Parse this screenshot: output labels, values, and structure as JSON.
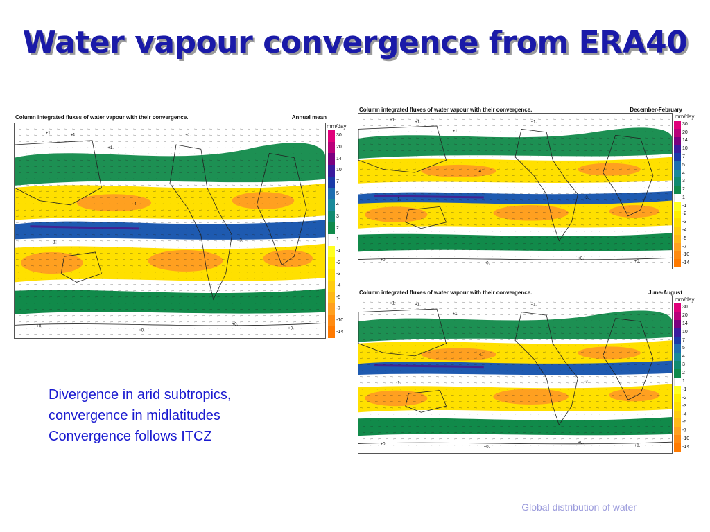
{
  "slide": {
    "title": "Water vapour convergence from ERA40",
    "bullets": [
      "Divergence in arid subtropics,",
      "convergence in midlatitudes",
      "Convergence follows ITCZ"
    ],
    "footer": "Global distribution of water"
  },
  "panels": [
    {
      "heading": "Column integrated fluxes of water vapour with their convergence.",
      "season": "Annual mean",
      "unit": "mm/day"
    },
    {
      "heading": "Column integrated fluxes of water vapour with their convergence.",
      "season": "December-February",
      "unit": "mm/day"
    },
    {
      "heading": "Column integrated fluxes of water vapour with their convergence.",
      "season": "June-August",
      "unit": "mm/day"
    }
  ],
  "colorbar": {
    "labels": [
      "30",
      "20",
      "14",
      "10",
      "7",
      "5",
      "4",
      "3",
      "2",
      "1",
      "-1",
      "-2",
      "-3",
      "-4",
      "-5",
      "-7",
      "-10",
      "-14"
    ],
    "colors": [
      "#e0007a",
      "#b8007a",
      "#7a0080",
      "#3a1a9e",
      "#1a3aa8",
      "#1e6eb0",
      "#1a8a9a",
      "#118a70",
      "#108a4a",
      "#ffffff",
      "#ffff20",
      "#fff000",
      "#ffe000",
      "#ffcc10",
      "#ffb818",
      "#ffa020",
      "#ff8a10",
      "#ff7a00"
    ]
  },
  "colors": {
    "title": "#1a1aa8",
    "bullets": "#1a1ad0",
    "footer": "#9b9bdc",
    "convergence_green": "#118a4a",
    "convergence_blue": "#1e5ab0",
    "divergence_yellow": "#ffe000",
    "divergence_orange": "#ffa020"
  },
  "contour_labels": [
    "+1.",
    "+1.",
    "+1.",
    "+1.",
    "+0.",
    "+0.",
    "+0.",
    "-4.",
    "-3.",
    "-1.",
    "+0."
  ]
}
